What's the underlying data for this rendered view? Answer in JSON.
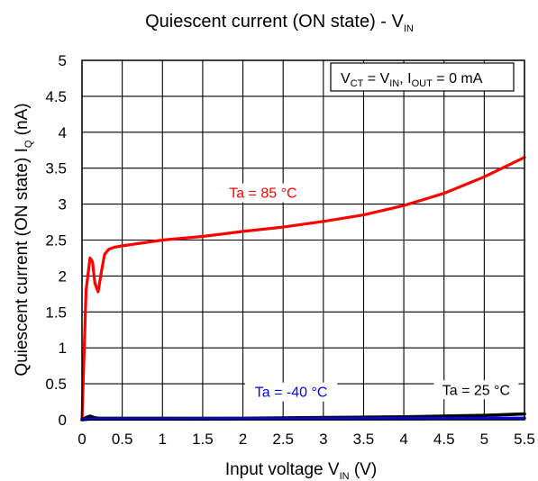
{
  "chart_data": {
    "type": "line",
    "title": {
      "main": "Quiescent current (ON state) - V",
      "sub": "IN"
    },
    "xlabel": {
      "main": "Input voltage V",
      "sub": "IN",
      "tail": " (V)"
    },
    "ylabel": {
      "main": "Quiescent current (ON state) I",
      "sub": "Q",
      "tail": " (nA)"
    },
    "xlim": [
      0,
      5.5
    ],
    "ylim": [
      0,
      5
    ],
    "xticks": [
      0,
      0.5,
      1,
      1.5,
      2,
      2.5,
      3,
      3.5,
      4,
      4.5,
      5,
      5.5
    ],
    "xtick_labels": [
      "0",
      "0.5",
      "1",
      "1.5",
      "2",
      "2.5",
      "3",
      "3.5",
      "4",
      "4.5",
      "5",
      "5.5"
    ],
    "yticks": [
      0,
      0.5,
      1,
      1.5,
      2,
      2.5,
      3,
      3.5,
      4,
      4.5,
      5
    ],
    "ytick_labels": [
      "0",
      "0.5",
      "1",
      "1.5",
      "2",
      "2.5",
      "3",
      "3.5",
      "4",
      "4.5",
      "5"
    ],
    "grid": true,
    "condition": {
      "p1": "V",
      "p1sub": "CT",
      "p2": " = V",
      "p2sub": "IN",
      "p3": ", I",
      "p3sub": "OUT",
      "p4": " = 0 mA"
    },
    "series": [
      {
        "name": "Ta = 85 °C",
        "color": "#ff0000",
        "label_at": [
          2.25,
          3.1
        ],
        "x": [
          0,
          0.05,
          0.1,
          0.13,
          0.16,
          0.2,
          0.24,
          0.28,
          0.33,
          0.4,
          0.5,
          1,
          1.5,
          2,
          2.5,
          3,
          3.5,
          4,
          4.5,
          5,
          5.5
        ],
        "y": [
          0,
          1.8,
          2.25,
          2.2,
          1.9,
          1.78,
          2.05,
          2.3,
          2.37,
          2.4,
          2.42,
          2.5,
          2.55,
          2.62,
          2.68,
          2.76,
          2.85,
          2.98,
          3.15,
          3.38,
          3.65
        ]
      },
      {
        "name": "Ta = 25 °C",
        "color": "#000000",
        "label_at": [
          4.9,
          0.36
        ],
        "x": [
          0,
          0.05,
          0.1,
          0.15,
          0.2,
          0.3,
          1,
          2,
          3,
          4,
          5,
          5.5
        ],
        "y": [
          0,
          0.03,
          0.05,
          0.03,
          0.02,
          0.02,
          0.02,
          0.02,
          0.03,
          0.04,
          0.06,
          0.08
        ]
      },
      {
        "name": "Ta = -40 °C",
        "color": "#0000ff",
        "label_at": [
          2.6,
          0.33
        ],
        "x": [
          0,
          0.05,
          0.1,
          0.3,
          1,
          2,
          3,
          4,
          5,
          5.5
        ],
        "y": [
          0,
          0.005,
          0.01,
          0.01,
          0.01,
          0.012,
          0.013,
          0.015,
          0.018,
          0.02
        ]
      }
    ]
  }
}
